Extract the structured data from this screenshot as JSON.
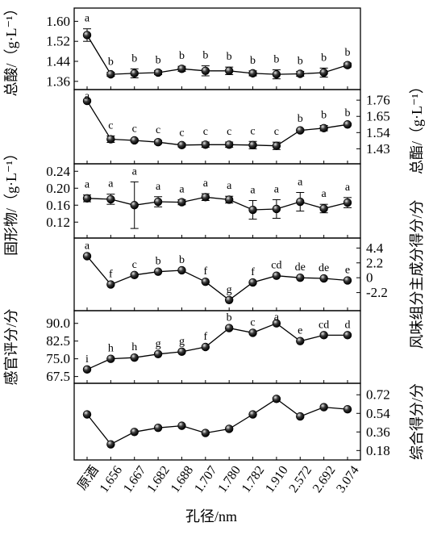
{
  "xlabel": "孔径/nm",
  "categories": [
    "原酒",
    "1.656",
    "1.667",
    "1.682",
    "1.688",
    "1.707",
    "1.780",
    "1.782",
    "1.910",
    "2.572",
    "2.692",
    "3.074"
  ],
  "chart_data": [
    {
      "type": "line",
      "ylabel": "总酸/（g·L⁻¹）",
      "y_axis_side": "left",
      "ylim": [
        1.34,
        1.64
      ],
      "yticks": [
        "1.60",
        "1.52",
        "1.44",
        "1.36"
      ],
      "ytick_values": [
        1.6,
        1.52,
        1.44,
        1.36
      ],
      "values": [
        1.545,
        1.388,
        1.392,
        1.395,
        1.41,
        1.402,
        1.402,
        1.392,
        1.388,
        1.39,
        1.395,
        1.425
      ],
      "errors": [
        0.025,
        0.008,
        0.018,
        0.008,
        0.01,
        0.02,
        0.015,
        0.01,
        0.018,
        0.01,
        0.018,
        0.008
      ],
      "letters": [
        "a",
        "b",
        "b",
        "b",
        "b",
        "b",
        "b",
        "b",
        "b",
        "b",
        "b",
        "b"
      ]
    },
    {
      "type": "line",
      "ylabel": "总酯/（g·L⁻¹）",
      "y_axis_side": "right",
      "ylim": [
        1.35,
        1.81
      ],
      "yticks": [
        "1.76",
        "1.65",
        "1.54",
        "1.43"
      ],
      "ytick_values": [
        1.76,
        1.65,
        1.54,
        1.43
      ],
      "values": [
        1.755,
        1.495,
        1.487,
        1.475,
        1.455,
        1.458,
        1.458,
        1.455,
        1.45,
        1.555,
        1.57,
        1.595
      ],
      "errors": [
        0.008,
        0.022,
        0.008,
        0.012,
        0.012,
        0.018,
        0.018,
        0.025,
        0.025,
        0.008,
        0.018,
        0.008
      ],
      "letters": [
        "a",
        "c",
        "c",
        "c",
        "c",
        "c",
        "c",
        "c",
        "c",
        "b",
        "b",
        "b"
      ]
    },
    {
      "type": "line",
      "ylabel": "固形物/（g·L⁻¹）",
      "y_axis_side": "left",
      "ylim": [
        0.09,
        0.25
      ],
      "yticks": [
        "0.24",
        "0.20",
        "0.16",
        "0.12"
      ],
      "ytick_values": [
        0.24,
        0.2,
        0.16,
        0.12
      ],
      "values": [
        0.176,
        0.174,
        0.16,
        0.168,
        0.167,
        0.179,
        0.173,
        0.149,
        0.151,
        0.168,
        0.152,
        0.166
      ],
      "errors": [
        0.008,
        0.012,
        0.055,
        0.012,
        0.006,
        0.008,
        0.008,
        0.022,
        0.022,
        0.022,
        0.01,
        0.012
      ],
      "letters": [
        "a",
        "a",
        "a",
        "a",
        "a",
        "a",
        "a",
        "a",
        "a",
        "a",
        "a",
        "a"
      ]
    },
    {
      "type": "line",
      "ylabel": "风味组分主成分得分/分",
      "y_axis_side": "right",
      "ylim": [
        -4.4,
        5.4
      ],
      "yticks": [
        "4.4",
        "2.2",
        "0",
        "-2.2"
      ],
      "ytick_values": [
        4.4,
        2.2,
        0,
        -2.2
      ],
      "values": [
        3.2,
        -1.0,
        0.4,
        0.9,
        1.1,
        -0.6,
        -3.3,
        -0.7,
        0.3,
        0.0,
        -0.1,
        -0.4
      ],
      "letters": [
        "a",
        "f",
        "c",
        "b",
        "b",
        "f",
        "g",
        "f",
        "cd",
        "de",
        "de",
        "e"
      ]
    },
    {
      "type": "line",
      "ylabel": "感官评分/分",
      "y_axis_side": "left",
      "ylim": [
        66,
        94
      ],
      "yticks": [
        "90.0",
        "82.5",
        "75.0",
        "67.5"
      ],
      "ytick_values": [
        90.0,
        82.5,
        75.0,
        67.5
      ],
      "values": [
        70.5,
        75.0,
        75.5,
        77.0,
        78.0,
        80.0,
        88.0,
        86.0,
        90.0,
        82.5,
        85.0,
        85.0
      ],
      "letters": [
        "i",
        "h",
        "h",
        "g",
        "g",
        "f",
        "b",
        "c",
        "a",
        "e",
        "cd",
        "d"
      ]
    },
    {
      "type": "line",
      "ylabel": "综合得分/分",
      "y_axis_side": "right",
      "ylim": [
        0.12,
        0.8
      ],
      "yticks": [
        "0.72",
        "0.54",
        "0.36",
        "0.18"
      ],
      "ytick_values": [
        0.72,
        0.54,
        0.36,
        0.18
      ],
      "values": [
        0.53,
        0.24,
        0.36,
        0.4,
        0.42,
        0.35,
        0.39,
        0.53,
        0.68,
        0.51,
        0.6,
        0.58
      ],
      "letters": []
    }
  ]
}
